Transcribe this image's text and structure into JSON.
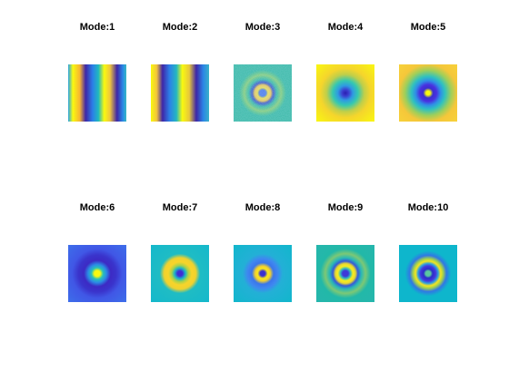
{
  "figure": {
    "panels": [
      {
        "title": "Mode:1",
        "pattern": "vertical-stripes",
        "colors": {
          "yellow": "#f9f90f",
          "blue": "#3e26a8",
          "cyan": "#1fb9bf"
        }
      },
      {
        "title": "Mode:2",
        "pattern": "vertical-stripes",
        "colors": {
          "yellow": "#f9f90f",
          "blue": "#3e26a8",
          "cyan": "#1fb9bf"
        }
      },
      {
        "title": "Mode:3",
        "pattern": "noisy-rings",
        "colors": {
          "background": "#2db9a3",
          "ring": "#f5d22a",
          "center": "#4763e0"
        }
      },
      {
        "title": "Mode:4",
        "pattern": "center-spot",
        "colors": {
          "background": "#f9f90f",
          "mid": "#35c8b0",
          "center": "#3b3fd0"
        }
      },
      {
        "title": "Mode:5",
        "pattern": "rings",
        "colors": {
          "outer": "#f5c73a",
          "ring": "#2fc1c0",
          "inner": "#4a2fe0",
          "center": "#f9f90f"
        }
      },
      {
        "title": "Mode:6",
        "pattern": "rings",
        "colors": {
          "outer": "#4057e6",
          "ring": "#3c2ac4",
          "inner": "#29c1b8",
          "center": "#f9f90f"
        }
      },
      {
        "title": "Mode:7",
        "pattern": "rings",
        "colors": {
          "outer": "#14b8cc",
          "ring": "#f8d42a",
          "inner": "#1ab6c9",
          "center": "#3e2dd6"
        }
      },
      {
        "title": "Mode:8",
        "pattern": "rings",
        "colors": {
          "outer": "#10b7cb",
          "ring": "#3f87f0",
          "inner": "#f8e81c",
          "center": "#3b2fd0"
        }
      },
      {
        "title": "Mode:9",
        "pattern": "rings",
        "colors": {
          "outer": "#22b8a8",
          "ring": "#2ab9b5",
          "inner": "#f8ee1d",
          "center": "#3e3ad8"
        }
      },
      {
        "title": "Mode:10",
        "pattern": "rings",
        "colors": {
          "outer": "#0eb6cc",
          "ring": "#f5e51e",
          "inner": "#4535dc",
          "center": "#5ac8a0"
        }
      }
    ]
  }
}
